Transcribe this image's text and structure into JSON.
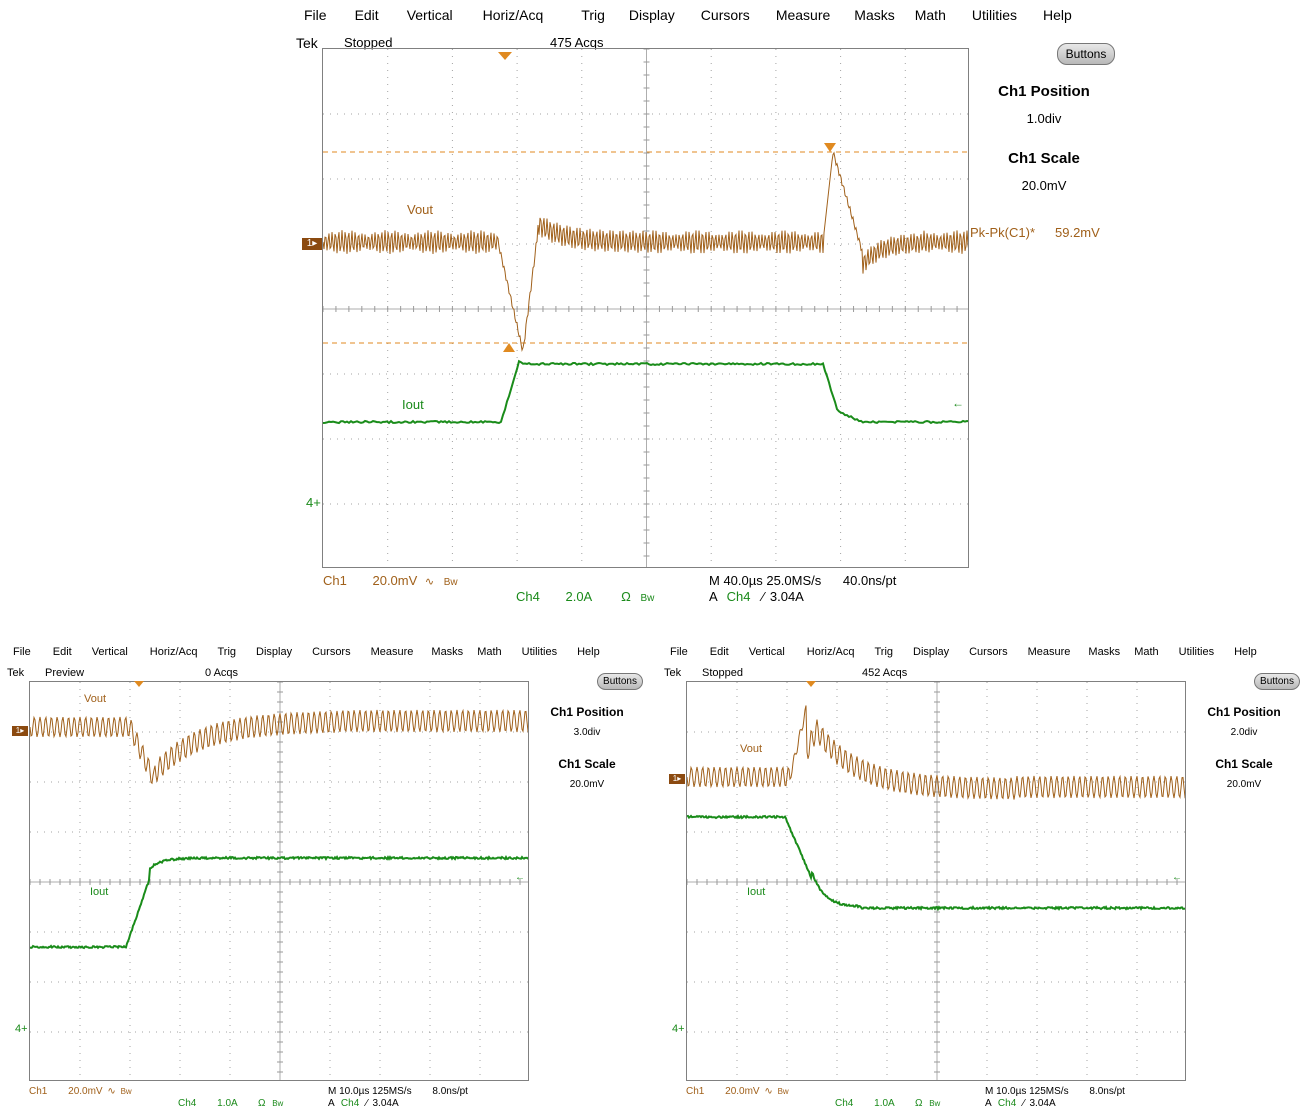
{
  "colors": {
    "ch1": "#a0601a",
    "ch4": "#1a8c1a",
    "cursor": "#e08a20",
    "grid": "#9a9a9a"
  },
  "top": {
    "menu": [
      "File",
      "Edit",
      "Vertical",
      "Horiz/Acq",
      "Trig",
      "Display",
      "Cursors",
      "Measure",
      "Masks",
      "Math",
      "Utilities",
      "Help"
    ],
    "brand": "Tek",
    "state": "Stopped",
    "acqs": "475 Acqs",
    "buttons_label": "Buttons",
    "ch1_position_title": "Ch1 Position",
    "ch1_position_value": "1.0div",
    "ch1_scale_title": "Ch1 Scale",
    "ch1_scale_value": "20.0mV",
    "trace1_label": "Vout",
    "trace4_label": "Iout",
    "measurement_label": "Pk-Pk(C1)*",
    "measurement_value": "59.2mV",
    "ch1_marker": "1",
    "ch4_marker": "4",
    "readout_ch1": "Ch1",
    "readout_ch1_scale": "20.0mV",
    "readout_ch1_coupling": "∿",
    "readout_bw": "Bw",
    "readout_ch4": "Ch4",
    "readout_ch4_scale": "2.0A",
    "readout_ch4_coupling": "Ω",
    "readout_horiz": "M 40.0µs 25.0MS/s",
    "readout_pt": "40.0ns/pt",
    "readout_trig_src": "A",
    "readout_trig_ch": "Ch4",
    "readout_trig_slope": "⁄",
    "readout_trig_level": "3.04A"
  },
  "left": {
    "menu": [
      "File",
      "Edit",
      "Vertical",
      "Horiz/Acq",
      "Trig",
      "Display",
      "Cursors",
      "Measure",
      "Masks",
      "Math",
      "Utilities",
      "Help"
    ],
    "brand": "Tek",
    "state": "Preview",
    "acqs": "0 Acqs",
    "buttons_label": "Buttons",
    "ch1_position_title": "Ch1 Position",
    "ch1_position_value": "3.0div",
    "ch1_scale_title": "Ch1 Scale",
    "ch1_scale_value": "20.0mV",
    "trace1_label": "Vout",
    "trace4_label": "Iout",
    "ch1_marker": "1",
    "ch4_marker": "4",
    "readout_ch1": "Ch1",
    "readout_ch1_scale": "20.0mV",
    "readout_ch1_coupling": "∿",
    "readout_bw": "Bw",
    "readout_ch4": "Ch4",
    "readout_ch4_scale": "1.0A",
    "readout_ch4_coupling": "Ω",
    "readout_horiz": "M 10.0µs 125MS/s",
    "readout_pt": "8.0ns/pt",
    "readout_trig_src": "A",
    "readout_trig_ch": "Ch4",
    "readout_trig_slope": "⁄",
    "readout_trig_level": "3.04A"
  },
  "right": {
    "menu": [
      "File",
      "Edit",
      "Vertical",
      "Horiz/Acq",
      "Trig",
      "Display",
      "Cursors",
      "Measure",
      "Masks",
      "Math",
      "Utilities",
      "Help"
    ],
    "brand": "Tek",
    "state": "Stopped",
    "acqs": "452 Acqs",
    "buttons_label": "Buttons",
    "ch1_position_title": "Ch1 Position",
    "ch1_position_value": "2.0div",
    "ch1_scale_title": "Ch1 Scale",
    "ch1_scale_value": "20.0mV",
    "trace1_label": "Vout",
    "trace4_label": "Iout",
    "ch1_marker": "1",
    "ch4_marker": "4",
    "readout_ch1": "Ch1",
    "readout_ch1_scale": "20.0mV",
    "readout_ch1_coupling": "∿",
    "readout_bw": "Bw",
    "readout_ch4": "Ch4",
    "readout_ch4_scale": "1.0A",
    "readout_ch4_coupling": "Ω",
    "readout_horiz": "M 10.0µs 125MS/s",
    "readout_pt": "8.0ns/pt",
    "readout_trig_src": "A",
    "readout_trig_ch": "Ch4",
    "readout_trig_slope": "⁄",
    "readout_trig_level": "3.04A"
  }
}
